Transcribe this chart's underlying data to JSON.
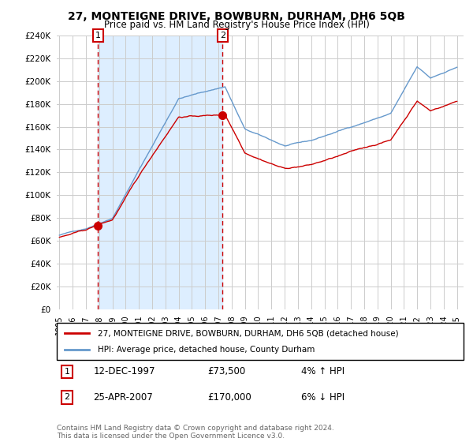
{
  "title": "27, MONTEIGNE DRIVE, BOWBURN, DURHAM, DH6 5QB",
  "subtitle": "Price paid vs. HM Land Registry's House Price Index (HPI)",
  "ylabel_ticks": [
    "£0",
    "£20K",
    "£40K",
    "£60K",
    "£80K",
    "£100K",
    "£120K",
    "£140K",
    "£160K",
    "£180K",
    "£200K",
    "£220K",
    "£240K"
  ],
  "ylim": [
    0,
    240000
  ],
  "yticks": [
    0,
    20000,
    40000,
    60000,
    80000,
    100000,
    120000,
    140000,
    160000,
    180000,
    200000,
    220000,
    240000
  ],
  "legend_label_red": "27, MONTEIGNE DRIVE, BOWBURN, DURHAM, DH6 5QB (detached house)",
  "legend_label_blue": "HPI: Average price, detached house, County Durham",
  "annotation1_date": "12-DEC-1997",
  "annotation1_price": "£73,500",
  "annotation1_hpi": "4% ↑ HPI",
  "annotation2_date": "25-APR-2007",
  "annotation2_price": "£170,000",
  "annotation2_hpi": "6% ↓ HPI",
  "footer": "Contains HM Land Registry data © Crown copyright and database right 2024.\nThis data is licensed under the Open Government Licence v3.0.",
  "red_color": "#cc0000",
  "blue_color": "#6699cc",
  "shade_color": "#ddeeff",
  "purchase1_x": 1997.917,
  "purchase1_y": 73500,
  "purchase2_x": 2007.31,
  "purchase2_y": 170000,
  "xlim_left": 1994.8,
  "xlim_right": 2025.5
}
